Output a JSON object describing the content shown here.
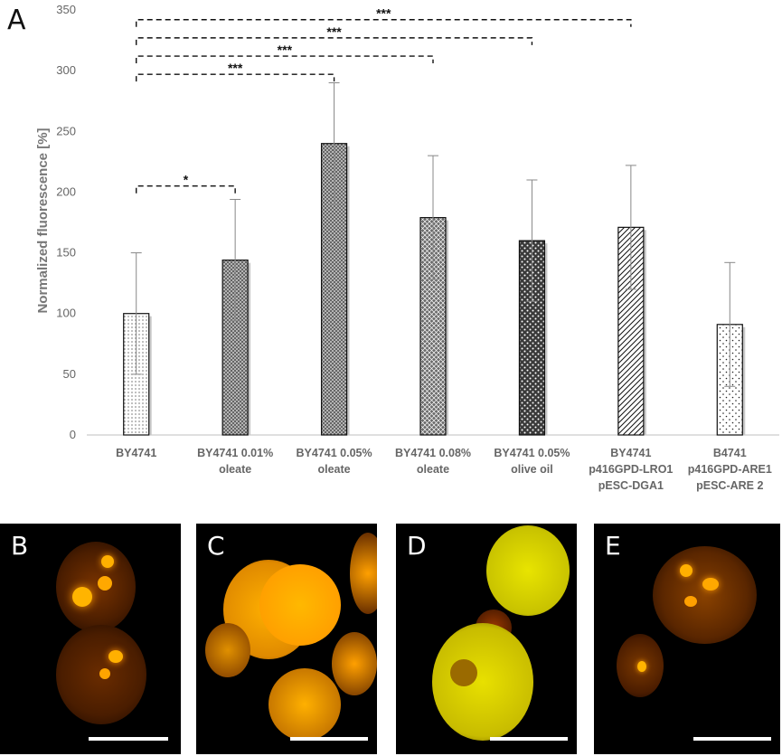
{
  "panel_a_label": "A",
  "chart_data": {
    "type": "bar",
    "ylabel": "Normalized fluorescence [%]",
    "xlabel": "",
    "ylim": [
      0,
      350
    ],
    "yticks": [
      0,
      50,
      100,
      150,
      200,
      250,
      300,
      350
    ],
    "grid": false,
    "categories": [
      [
        "BY4741"
      ],
      [
        "BY4741 0.01%",
        "oleate"
      ],
      [
        "BY4741 0.05%",
        "oleate"
      ],
      [
        "BY4741 0.08%",
        "oleate"
      ],
      [
        "BY4741 0.05%",
        "olive oil"
      ],
      [
        "BY4741",
        "p416GPD-LRO1",
        "pESC-DGA1"
      ],
      [
        "B4741",
        "p416GPD-ARE1",
        "pESC-ARE 2"
      ]
    ],
    "values": [
      100,
      144,
      240,
      179,
      160,
      171,
      91
    ],
    "error": [
      50,
      50,
      50,
      51,
      50,
      51,
      51
    ],
    "patterns": [
      "fine-dots",
      "dense-crosshatch",
      "dense-crosshatch",
      "crosshatch",
      "diamond-dots",
      "diagonal",
      "sparse-dots"
    ],
    "significance": [
      {
        "from": 0,
        "to": 1,
        "label": "*",
        "y": 205
      },
      {
        "from": 0,
        "to": 2,
        "label": "***",
        "y": 297
      },
      {
        "from": 0,
        "to": 3,
        "label": "***",
        "y": 312
      },
      {
        "from": 0,
        "to": 4,
        "label": "***",
        "y": 327
      },
      {
        "from": 0,
        "to": 5,
        "label": "***",
        "y": 342
      }
    ]
  },
  "micrographs": [
    {
      "label": "B"
    },
    {
      "label": "C"
    },
    {
      "label": "D"
    },
    {
      "label": "E"
    }
  ]
}
